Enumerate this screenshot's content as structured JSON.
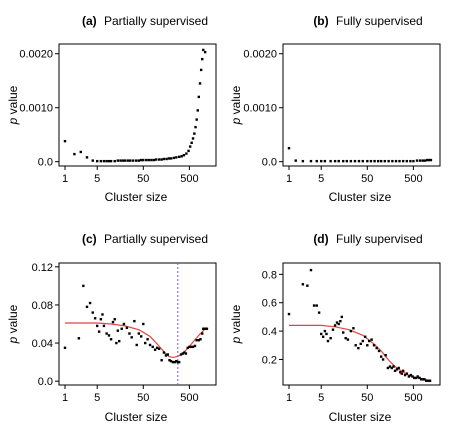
{
  "xaxis": {
    "label": "Cluster size",
    "ticks": [
      1,
      5,
      50,
      500
    ],
    "tick_labels": [
      "1",
      "5",
      "50",
      "500"
    ]
  },
  "yaxis": {
    "label_var": "p",
    "label_suffix": " value"
  },
  "colors": {
    "points": "#000000",
    "fit": "#e0463c",
    "marker": "#8a4fd0"
  },
  "chart_data": [
    {
      "panel": "(a)",
      "title": "Partially supervised",
      "type": "scatter",
      "log_x": true,
      "xlim": [
        1,
        1400
      ],
      "ylim": [
        -8e-05,
        0.00218
      ],
      "yticks": [
        0.0,
        0.001,
        0.002
      ],
      "ytick_labels": [
        "0.0",
        "0.0010",
        "0.0020"
      ],
      "points": [
        [
          1,
          0.00038
        ],
        [
          1.6,
          0.00014
        ],
        [
          2.2,
          0.00018
        ],
        [
          3,
          8e-05
        ],
        [
          4,
          2e-05
        ],
        [
          5,
          1e-05
        ],
        [
          6,
          1e-05
        ],
        [
          7,
          1e-05
        ],
        [
          8,
          1e-05
        ],
        [
          9,
          1e-05
        ],
        [
          10,
          1e-05
        ],
        [
          12,
          1e-05
        ],
        [
          14,
          2e-05
        ],
        [
          16,
          2e-05
        ],
        [
          18,
          2e-05
        ],
        [
          20,
          2e-05
        ],
        [
          23,
          2e-05
        ],
        [
          26,
          2e-05
        ],
        [
          30,
          2e-05
        ],
        [
          35,
          2e-05
        ],
        [
          40,
          2e-05
        ],
        [
          45,
          3e-05
        ],
        [
          50,
          3e-05
        ],
        [
          58,
          3e-05
        ],
        [
          66,
          3e-05
        ],
        [
          75,
          3e-05
        ],
        [
          85,
          3e-05
        ],
        [
          95,
          4e-05
        ],
        [
          110,
          4e-05
        ],
        [
          125,
          4e-05
        ],
        [
          140,
          5e-05
        ],
        [
          160,
          5e-05
        ],
        [
          180,
          6e-05
        ],
        [
          200,
          6e-05
        ],
        [
          230,
          7e-05
        ],
        [
          260,
          8e-05
        ],
        [
          300,
          9e-05
        ],
        [
          340,
          0.0001
        ],
        [
          380,
          0.00012
        ],
        [
          430,
          0.00015
        ],
        [
          480,
          0.0002
        ],
        [
          520,
          0.00028
        ],
        [
          560,
          0.00035
        ],
        [
          600,
          0.00043
        ],
        [
          640,
          0.00052
        ],
        [
          680,
          0.00064
        ],
        [
          720,
          0.00078
        ],
        [
          760,
          0.00095
        ],
        [
          800,
          0.0012
        ],
        [
          850,
          0.00145
        ],
        [
          900,
          0.0017
        ],
        [
          950,
          0.0019
        ],
        [
          1000,
          0.00207
        ],
        [
          1100,
          0.00203
        ]
      ]
    },
    {
      "panel": "(b)",
      "title": "Fully  supervised",
      "type": "scatter",
      "log_x": true,
      "xlim": [
        1,
        1400
      ],
      "ylim": [
        -8e-05,
        0.00218
      ],
      "yticks": [
        0.0,
        0.001,
        0.002
      ],
      "ytick_labels": [
        "0.0",
        "0.0010",
        "0.0020"
      ],
      "points": [
        [
          1,
          0.00025
        ],
        [
          1.4,
          2e-05
        ],
        [
          2,
          1e-05
        ],
        [
          3,
          1e-05
        ],
        [
          4,
          1e-05
        ],
        [
          5,
          1e-05
        ],
        [
          6,
          1e-05
        ],
        [
          8,
          1e-05
        ],
        [
          10,
          1e-05
        ],
        [
          12,
          1e-05
        ],
        [
          15,
          1e-05
        ],
        [
          18,
          1e-05
        ],
        [
          22,
          1e-05
        ],
        [
          27,
          1e-05
        ],
        [
          33,
          1e-05
        ],
        [
          40,
          1e-05
        ],
        [
          50,
          1e-05
        ],
        [
          60,
          1e-05
        ],
        [
          72,
          1e-05
        ],
        [
          86,
          1e-05
        ],
        [
          100,
          1e-05
        ],
        [
          120,
          1e-05
        ],
        [
          145,
          1e-05
        ],
        [
          175,
          1e-05
        ],
        [
          210,
          1e-05
        ],
        [
          250,
          1e-05
        ],
        [
          300,
          1e-05
        ],
        [
          360,
          1e-05
        ],
        [
          430,
          1e-05
        ],
        [
          500,
          1e-05
        ],
        [
          600,
          2e-05
        ],
        [
          700,
          2e-05
        ],
        [
          800,
          2e-05
        ],
        [
          900,
          2e-05
        ],
        [
          1000,
          3e-05
        ],
        [
          1100,
          3e-05
        ],
        [
          1200,
          3e-05
        ]
      ]
    },
    {
      "panel": "(c)",
      "title": "Partially supervised",
      "type": "scatter",
      "log_x": true,
      "xlim": [
        1,
        1400
      ],
      "ylim": [
        -0.004,
        0.124
      ],
      "yticks": [
        0.0,
        0.04,
        0.08,
        0.12
      ],
      "ytick_labels": [
        "0.0",
        "0.04",
        "0.08",
        "0.12"
      ],
      "vline_x": 280,
      "points": [
        [
          1,
          0.035
        ],
        [
          2,
          0.045
        ],
        [
          2.5,
          0.1
        ],
        [
          3,
          0.078
        ],
        [
          3.5,
          0.082
        ],
        [
          4,
          0.072
        ],
        [
          4.5,
          0.066
        ],
        [
          5,
          0.058
        ],
        [
          5.5,
          0.052
        ],
        [
          6,
          0.065
        ],
        [
          6.5,
          0.07
        ],
        [
          7,
          0.058
        ],
        [
          8,
          0.05
        ],
        [
          9,
          0.048
        ],
        [
          10,
          0.044
        ],
        [
          11,
          0.062
        ],
        [
          12,
          0.065
        ],
        [
          13,
          0.04
        ],
        [
          14,
          0.053
        ],
        [
          15,
          0.042
        ],
        [
          17,
          0.055
        ],
        [
          19,
          0.06
        ],
        [
          22,
          0.056
        ],
        [
          25,
          0.05
        ],
        [
          28,
          0.046
        ],
        [
          32,
          0.063
        ],
        [
          36,
          0.038
        ],
        [
          40,
          0.05
        ],
        [
          45,
          0.047
        ],
        [
          50,
          0.06
        ],
        [
          55,
          0.04
        ],
        [
          62,
          0.044
        ],
        [
          70,
          0.038
        ],
        [
          80,
          0.036
        ],
        [
          90,
          0.033
        ],
        [
          100,
          0.035
        ],
        [
          110,
          0.034
        ],
        [
          125,
          0.022
        ],
        [
          140,
          0.03
        ],
        [
          155,
          0.027
        ],
        [
          170,
          0.028
        ],
        [
          185,
          0.022
        ],
        [
          200,
          0.021
        ],
        [
          220,
          0.02
        ],
        [
          240,
          0.02
        ],
        [
          260,
          0.021
        ],
        [
          280,
          0.02
        ],
        [
          300,
          0.02
        ],
        [
          330,
          0.028
        ],
        [
          360,
          0.029
        ],
        [
          390,
          0.03
        ],
        [
          420,
          0.029
        ],
        [
          460,
          0.035
        ],
        [
          500,
          0.036
        ],
        [
          550,
          0.036
        ],
        [
          600,
          0.036
        ],
        [
          660,
          0.037
        ],
        [
          720,
          0.043
        ],
        [
          800,
          0.043
        ],
        [
          870,
          0.044
        ],
        [
          950,
          0.05
        ],
        [
          1000,
          0.055
        ],
        [
          1050,
          0.055
        ],
        [
          1100,
          0.055
        ],
        [
          1150,
          0.055
        ],
        [
          1200,
          0.055
        ]
      ],
      "fit_curve": [
        [
          1,
          0.061
        ],
        [
          5,
          0.061
        ],
        [
          10,
          0.06
        ],
        [
          20,
          0.058
        ],
        [
          40,
          0.054
        ],
        [
          70,
          0.047
        ],
        [
          100,
          0.039
        ],
        [
          140,
          0.031
        ],
        [
          180,
          0.026
        ],
        [
          220,
          0.025
        ],
        [
          280,
          0.026
        ],
        [
          350,
          0.029
        ],
        [
          450,
          0.034
        ],
        [
          600,
          0.041
        ],
        [
          800,
          0.048
        ],
        [
          1000,
          0.053
        ],
        [
          1200,
          0.056
        ]
      ]
    },
    {
      "panel": "(d)",
      "title": "Fully  supervised",
      "type": "scatter",
      "log_x": true,
      "xlim": [
        1,
        1400
      ],
      "ylim": [
        0.02,
        0.88
      ],
      "yticks": [
        0.2,
        0.4,
        0.6,
        0.8
      ],
      "ytick_labels": [
        "0.2",
        "0.4",
        "0.6",
        "0.8"
      ],
      "points": [
        [
          1,
          0.52
        ],
        [
          2,
          0.73
        ],
        [
          2.5,
          0.72
        ],
        [
          3,
          0.83
        ],
        [
          3.5,
          0.58
        ],
        [
          4,
          0.58
        ],
        [
          4.5,
          0.53
        ],
        [
          5,
          0.38
        ],
        [
          5.5,
          0.36
        ],
        [
          6,
          0.4
        ],
        [
          6.5,
          0.38
        ],
        [
          7,
          0.33
        ],
        [
          8,
          0.35
        ],
        [
          9,
          0.41
        ],
        [
          10,
          0.44
        ],
        [
          11,
          0.46
        ],
        [
          12,
          0.45
        ],
        [
          13,
          0.47
        ],
        [
          14,
          0.5
        ],
        [
          15,
          0.39
        ],
        [
          17,
          0.35
        ],
        [
          19,
          0.34
        ],
        [
          22,
          0.4
        ],
        [
          25,
          0.42
        ],
        [
          28,
          0.3
        ],
        [
          32,
          0.28
        ],
        [
          36,
          0.31
        ],
        [
          40,
          0.33
        ],
        [
          45,
          0.36
        ],
        [
          50,
          0.3
        ],
        [
          55,
          0.33
        ],
        [
          62,
          0.34
        ],
        [
          70,
          0.3
        ],
        [
          80,
          0.28
        ],
        [
          90,
          0.26
        ],
        [
          100,
          0.22
        ],
        [
          110,
          0.2
        ],
        [
          125,
          0.23
        ],
        [
          140,
          0.14
        ],
        [
          155,
          0.15
        ],
        [
          170,
          0.14
        ],
        [
          185,
          0.15
        ],
        [
          200,
          0.12
        ],
        [
          220,
          0.13
        ],
        [
          240,
          0.14
        ],
        [
          260,
          0.11
        ],
        [
          280,
          0.1
        ],
        [
          300,
          0.12
        ],
        [
          330,
          0.09
        ],
        [
          360,
          0.1
        ],
        [
          400,
          0.08
        ],
        [
          440,
          0.09
        ],
        [
          480,
          0.08
        ],
        [
          520,
          0.07
        ],
        [
          570,
          0.07
        ],
        [
          620,
          0.08
        ],
        [
          680,
          0.07
        ],
        [
          740,
          0.06
        ],
        [
          800,
          0.06
        ],
        [
          870,
          0.06
        ],
        [
          950,
          0.05
        ],
        [
          1050,
          0.05
        ],
        [
          1150,
          0.05
        ]
      ],
      "fit_curve": [
        [
          1,
          0.44
        ],
        [
          5,
          0.44
        ],
        [
          10,
          0.43
        ],
        [
          20,
          0.41
        ],
        [
          40,
          0.37
        ],
        [
          70,
          0.31
        ],
        [
          100,
          0.26
        ],
        [
          150,
          0.19
        ],
        [
          200,
          0.15
        ],
        [
          300,
          0.11
        ],
        [
          450,
          0.08
        ],
        [
          700,
          0.065
        ],
        [
          1000,
          0.055
        ],
        [
          1200,
          0.05
        ]
      ]
    }
  ]
}
